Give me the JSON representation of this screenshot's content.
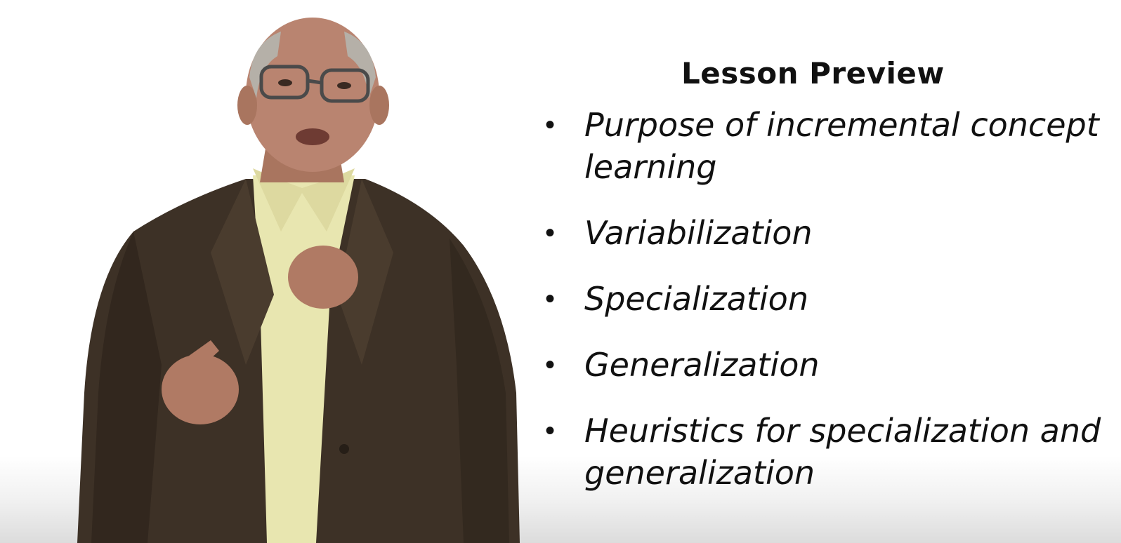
{
  "slide": {
    "title": "Lesson Preview",
    "bullets": [
      "Purpose of incremental concept learning",
      "Variabilization",
      "Specialization",
      "Generalization",
      "Heuristics for specialization and generalization"
    ]
  },
  "colors": {
    "background": "#ffffff",
    "text": "#111111",
    "jacket": "#3d3126",
    "shirt": "#e8e6b0",
    "skin": "#b98470"
  }
}
